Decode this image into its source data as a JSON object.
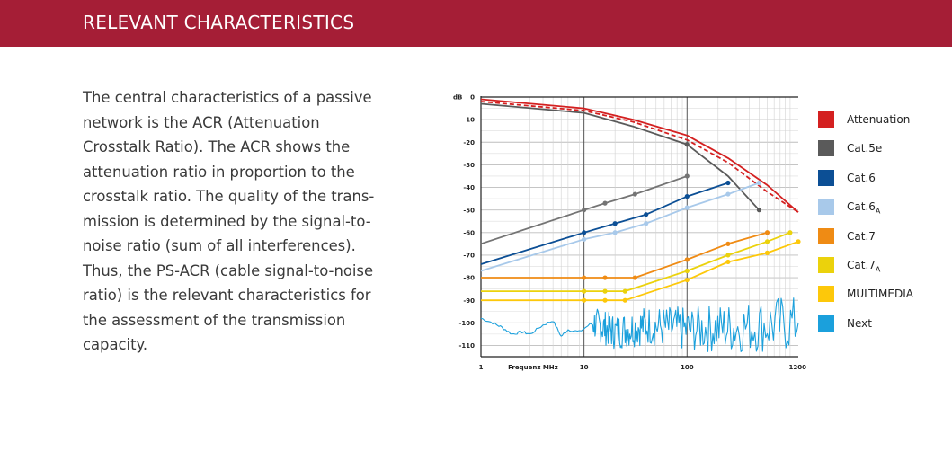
{
  "header": {
    "title": "RELEVANT CHARACTERISTICS"
  },
  "body": {
    "text": "The central characteristics of a passive\nnetwork is the ACR (Attenuation\nCrosstalk Ratio). The ACR shows the\nattenuation ratio in proportion to the\ncrosstalk ratio. The quality of the trans-\nmission is determined by the signal-to-\nnoise ratio (sum of all interferences).\nThus, the PS-ACR (cable signal-to-noise\nratio) is the relevant characteristics for\nthe assessment of the transmission\ncapacity."
  },
  "chart_data": {
    "type": "line",
    "ylabel": "dB",
    "xlabel": "Frequenz MHz",
    "x_scale": "log",
    "xlim": [
      1,
      1200
    ],
    "ylim": [
      -115,
      0
    ],
    "x_ticks": [
      1,
      10,
      100,
      1200
    ],
    "x_tick_labels": [
      "1",
      "10",
      "100",
      "1200"
    ],
    "y_ticks": [
      0,
      -10,
      -20,
      -30,
      -40,
      -50,
      -60,
      -70,
      -80,
      -90,
      -100,
      -110
    ],
    "y_tick_labels": [
      "0",
      "-10",
      "-20",
      "-30",
      "-40",
      "-50",
      "-60",
      "-70",
      "-80",
      "-90",
      "-100",
      "-110"
    ],
    "grid": true,
    "legend_position": "right",
    "series": [
      {
        "name": "Attenuation",
        "color": "#d42020",
        "style": "solid",
        "markers": false,
        "points": [
          [
            1,
            -1
          ],
          [
            10,
            -5
          ],
          [
            30,
            -10
          ],
          [
            100,
            -17
          ],
          [
            250,
            -27
          ],
          [
            600,
            -39
          ],
          [
            1200,
            -51
          ]
        ]
      },
      {
        "name": "Attenuation",
        "color": "#d42020",
        "style": "dashed",
        "markers": false,
        "points": [
          [
            1,
            -2
          ],
          [
            10,
            -6
          ],
          [
            30,
            -11
          ],
          [
            100,
            -19
          ],
          [
            250,
            -29
          ],
          [
            600,
            -42
          ],
          [
            1200,
            -51
          ]
        ]
      },
      {
        "name": "Cat.5e",
        "color": "#5a5a5a",
        "style": "solid",
        "markers": false,
        "points": [
          [
            1,
            -3
          ],
          [
            10,
            -7
          ],
          [
            30,
            -13
          ],
          [
            100,
            -21
          ],
          [
            250,
            -35
          ],
          [
            500,
            -50
          ]
        ]
      },
      {
        "name": "Cat.5e",
        "color": "#747474",
        "style": "solid",
        "markers": true,
        "points": [
          [
            1,
            -65
          ],
          [
            10,
            -50
          ],
          [
            16,
            -47
          ],
          [
            31.25,
            -43
          ],
          [
            100,
            -35
          ]
        ]
      },
      {
        "name": "Cat.6",
        "color": "#0c4f95",
        "style": "solid",
        "markers": true,
        "points": [
          [
            1,
            -74
          ],
          [
            10,
            -60
          ],
          [
            20,
            -56
          ],
          [
            40,
            -52
          ],
          [
            100,
            -44
          ],
          [
            250,
            -38
          ]
        ]
      },
      {
        "name": "Cat.6A",
        "color": "#a8c9ea",
        "style": "solid",
        "markers": true,
        "points": [
          [
            1,
            -77
          ],
          [
            10,
            -63
          ],
          [
            20,
            -60
          ],
          [
            40,
            -56
          ],
          [
            100,
            -49
          ],
          [
            250,
            -43
          ],
          [
            500,
            -38
          ]
        ]
      },
      {
        "name": "Cat.7",
        "color": "#ef8b14",
        "style": "solid",
        "markers": true,
        "points": [
          [
            1,
            -80
          ],
          [
            10,
            -80
          ],
          [
            16,
            -80
          ],
          [
            31.25,
            -80
          ],
          [
            100,
            -72
          ],
          [
            250,
            -65
          ],
          [
            600,
            -60
          ]
        ]
      },
      {
        "name": "Cat.7A",
        "color": "#ebd20c",
        "style": "solid",
        "markers": true,
        "points": [
          [
            1,
            -86
          ],
          [
            10,
            -86
          ],
          [
            16,
            -86
          ],
          [
            25,
            -86
          ],
          [
            100,
            -77
          ],
          [
            250,
            -70
          ],
          [
            600,
            -64
          ],
          [
            1000,
            -60
          ]
        ]
      },
      {
        "name": "MULTIMEDIA",
        "color": "#fdc80a",
        "style": "solid",
        "markers": true,
        "points": [
          [
            1,
            -90
          ],
          [
            10,
            -90
          ],
          [
            16,
            -90
          ],
          [
            25,
            -90
          ],
          [
            100,
            -81
          ],
          [
            250,
            -73
          ],
          [
            600,
            -69
          ],
          [
            1200,
            -64
          ]
        ]
      },
      {
        "name": "Next",
        "color": "#1ba0dc",
        "style": "noise",
        "markers": false,
        "points": [
          [
            1,
            -98
          ],
          [
            1.3,
            -100
          ],
          [
            1.6,
            -102
          ],
          [
            2,
            -105
          ],
          [
            2.5,
            -104
          ],
          [
            3,
            -105
          ],
          [
            4,
            -101
          ],
          [
            5,
            -99
          ],
          [
            6,
            -106
          ],
          [
            7,
            -103
          ],
          [
            9,
            -104
          ],
          [
            12,
            -100
          ],
          [
            20,
            -104
          ],
          [
            40,
            -101
          ],
          [
            100,
            -103
          ],
          [
            300,
            -102
          ],
          [
            1200,
            -100
          ]
        ]
      }
    ]
  },
  "legend": {
    "items": [
      {
        "label": "Attenuation",
        "sub": "",
        "color": "#d42020"
      },
      {
        "label": "Cat.5e",
        "sub": "",
        "color": "#5a5a5a"
      },
      {
        "label": "Cat.6",
        "sub": "",
        "color": "#0c4f95"
      },
      {
        "label": "Cat.6",
        "sub": "A",
        "color": "#a8c9ea"
      },
      {
        "label": "Cat.7",
        "sub": "",
        "color": "#ef8b14"
      },
      {
        "label": "Cat.7",
        "sub": "A",
        "color": "#ebd20c"
      },
      {
        "label": "MULTIMEDIA",
        "sub": "",
        "color": "#fdc80a"
      },
      {
        "label": "Next",
        "sub": "",
        "color": "#1ba0dc"
      }
    ]
  }
}
